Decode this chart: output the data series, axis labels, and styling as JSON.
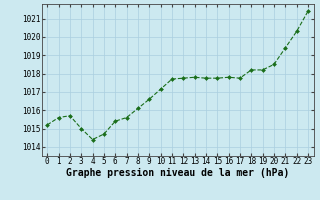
{
  "x": [
    0,
    1,
    2,
    3,
    4,
    5,
    6,
    7,
    8,
    9,
    10,
    11,
    12,
    13,
    14,
    15,
    16,
    17,
    18,
    19,
    20,
    21,
    22,
    23
  ],
  "y": [
    1015.2,
    1015.6,
    1015.7,
    1015.0,
    1014.4,
    1014.7,
    1015.4,
    1015.6,
    1016.1,
    1016.6,
    1017.15,
    1017.7,
    1017.75,
    1017.8,
    1017.75,
    1017.75,
    1017.8,
    1017.75,
    1018.2,
    1018.2,
    1018.5,
    1019.4,
    1020.3,
    1021.4
  ],
  "line_color": "#1a6e1a",
  "marker_color": "#1a6e1a",
  "bg_color": "#cce9f0",
  "grid_color": "#aacfdf",
  "xlabel": "Graphe pression niveau de la mer (hPa)",
  "xlim": [
    -0.5,
    23.5
  ],
  "ylim": [
    1013.5,
    1021.8
  ],
  "yticks": [
    1014,
    1015,
    1016,
    1017,
    1018,
    1019,
    1020,
    1021
  ],
  "xticks": [
    0,
    1,
    2,
    3,
    4,
    5,
    6,
    7,
    8,
    9,
    10,
    11,
    12,
    13,
    14,
    15,
    16,
    17,
    18,
    19,
    20,
    21,
    22,
    23
  ],
  "tick_fontsize": 5.5,
  "xlabel_fontsize": 7.0
}
